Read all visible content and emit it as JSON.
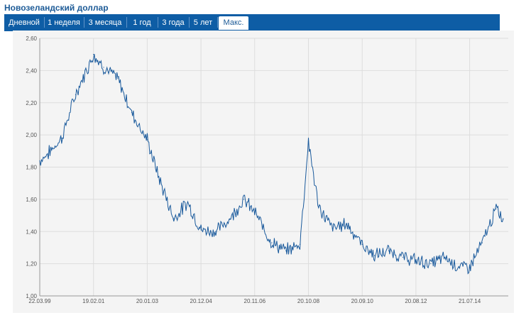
{
  "title": "Новозеландский доллар",
  "tabs": [
    {
      "label": "Дневной"
    },
    {
      "label": "1 неделя"
    },
    {
      "label": "3 месяца"
    },
    {
      "label": "1 год"
    },
    {
      "label": "3 года"
    },
    {
      "label": "5 лет"
    },
    {
      "label": "Макс.",
      "active": true
    }
  ],
  "colors": {
    "line": "#1a5a9c",
    "tab_bar": "#0e5da5",
    "title": "#1d5b97"
  },
  "chart_data": {
    "type": "line",
    "title": "",
    "xlabel": "",
    "ylabel": "",
    "ylim": [
      1.0,
      2.6
    ],
    "y_ticks": [
      "2,60",
      "2,40",
      "2,20",
      "2,00",
      "1,80",
      "1,60",
      "1,40",
      "1,20",
      "1,00"
    ],
    "x_ticks": [
      "22.03.99",
      "19.02.01",
      "20.01.03",
      "20.12.04",
      "20.11.06",
      "20.10.08",
      "20.09.10",
      "20.08.12",
      "21.07.14"
    ],
    "grid": true,
    "series": [
      {
        "x": [
          "22.03.99",
          "01.07.99",
          "01.01.00",
          "01.07.00",
          "19.02.01",
          "01.07.01",
          "01.01.02",
          "01.07.02",
          "20.01.03",
          "01.07.03",
          "01.01.04",
          "01.07.04",
          "20.12.04",
          "01.07.05",
          "01.01.06",
          "01.07.06",
          "20.11.06",
          "01.07.07",
          "01.01.08",
          "01.07.08",
          "20.10.08",
          "01.03.09",
          "01.09.09",
          "01.03.10",
          "20.09.10",
          "01.03.11",
          "01.09.11",
          "01.03.12",
          "20.08.12",
          "01.03.13",
          "01.09.13",
          "01.03.14",
          "21.07.14",
          "01.01.15",
          "01.07.15",
          "01.10.15"
        ],
        "values": [
          1.84,
          1.88,
          1.98,
          2.25,
          2.5,
          2.42,
          2.35,
          2.14,
          1.97,
          1.72,
          1.48,
          1.58,
          1.41,
          1.4,
          1.48,
          1.6,
          1.52,
          1.33,
          1.28,
          1.32,
          1.96,
          1.55,
          1.42,
          1.45,
          1.32,
          1.25,
          1.28,
          1.24,
          1.22,
          1.2,
          1.24,
          1.18,
          1.18,
          1.33,
          1.54,
          1.48
        ]
      }
    ]
  }
}
